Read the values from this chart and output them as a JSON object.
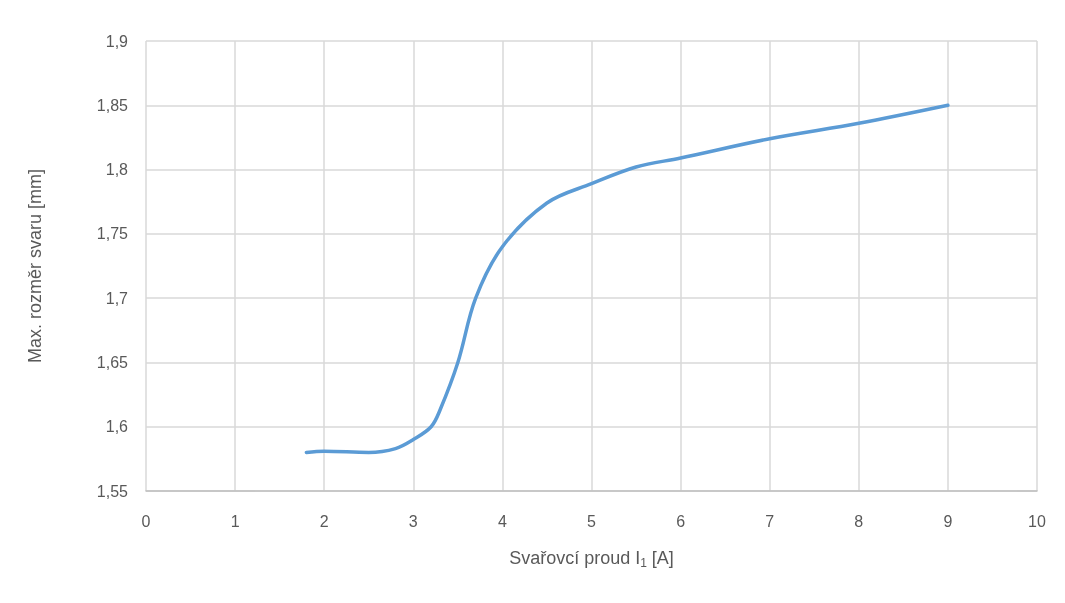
{
  "chart_data": {
    "type": "line",
    "xlabel": "Svařovcí proud I$_{1}$ [A]",
    "ylabel": "Max. rozměr svaru [mm]",
    "x": [
      1.8,
      2.0,
      2.5,
      2.8,
      3.0,
      3.2,
      3.3,
      3.5,
      3.7,
      4.0,
      4.5,
      5.0,
      5.5,
      6.0,
      7.0,
      8.0,
      9.0
    ],
    "series": [
      {
        "color": "#5b9bd5",
        "values": [
          1.58,
          1.581,
          1.58,
          1.583,
          1.59,
          1.6,
          1.613,
          1.65,
          1.7,
          1.74,
          1.774,
          1.789,
          1.802,
          1.809,
          1.824,
          1.836,
          1.85
        ]
      }
    ],
    "xlim": [
      0,
      10
    ],
    "xticks": [
      0,
      1,
      2,
      3,
      4,
      5,
      6,
      7,
      8,
      9,
      10
    ],
    "ylim": [
      1.55,
      1.9
    ],
    "yticks": [
      {
        "value": 1.55,
        "label": "1,55"
      },
      {
        "value": 1.6,
        "label": "1,6"
      },
      {
        "value": 1.65,
        "label": "1,65"
      },
      {
        "value": 1.7,
        "label": "1,7"
      },
      {
        "value": 1.75,
        "label": "1,75"
      },
      {
        "value": 1.8,
        "label": "1,8"
      },
      {
        "value": 1.85,
        "label": "1,85"
      },
      {
        "value": 1.9,
        "label": "1,9"
      }
    ],
    "grid": true,
    "marker": "none"
  }
}
